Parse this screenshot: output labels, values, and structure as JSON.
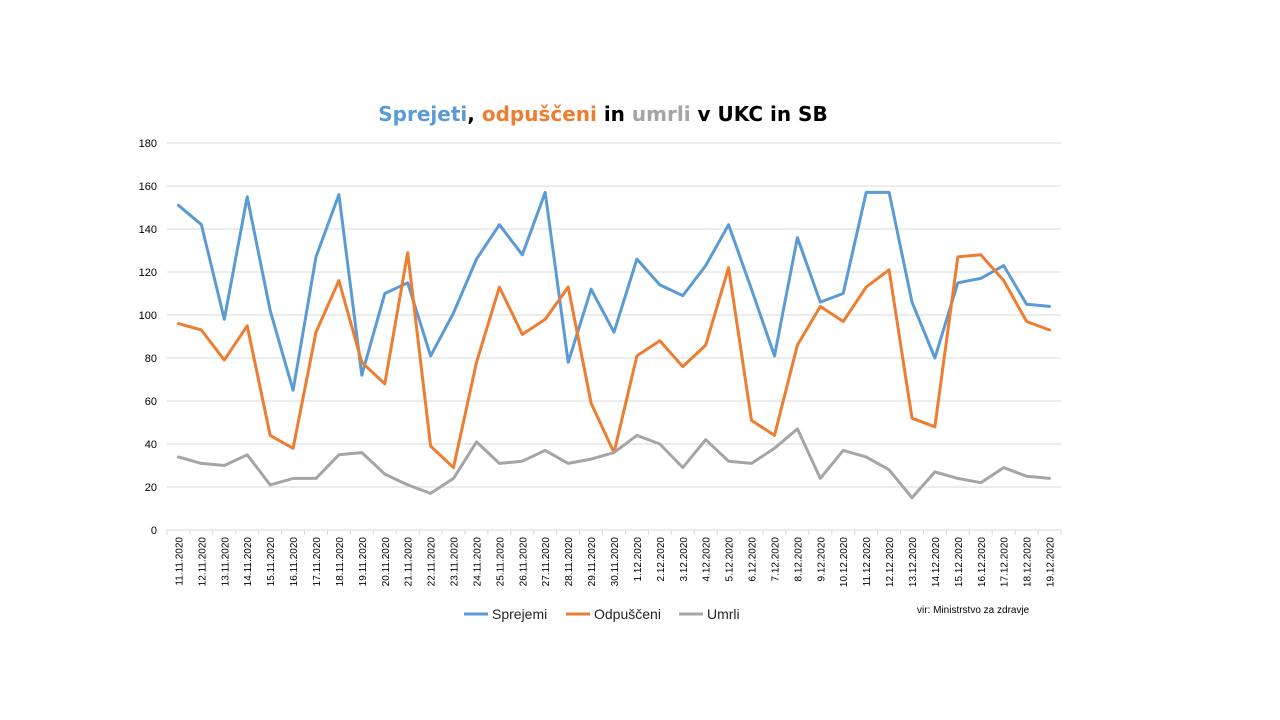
{
  "chart_data": {
    "type": "line",
    "title_parts": [
      {
        "text": "Sprejeti",
        "color": "#5b9bd5"
      },
      {
        "text": ", ",
        "color": "#000000"
      },
      {
        "text": "odpuščeni",
        "color": "#ed7d31"
      },
      {
        "text": " in ",
        "color": "#000000"
      },
      {
        "text": "umrli",
        "color": "#a5a5a5"
      },
      {
        "text": " v UKC in SB",
        "color": "#000000"
      }
    ],
    "source": "vir: Ministrstvo za zdravje",
    "ylim": [
      0,
      180
    ],
    "yticks": [
      0,
      20,
      40,
      60,
      80,
      100,
      120,
      140,
      160,
      180
    ],
    "grid": true,
    "legend_position": "bottom",
    "categories": [
      "11.11.2020",
      "12.11.2020",
      "13.11.2020",
      "14.11.2020",
      "15.11.2020",
      "16.11.2020",
      "17.11.2020",
      "18.11.2020",
      "19.11.2020",
      "20.11.2020",
      "21.11.2020",
      "22.11.2020",
      "23.11.2020",
      "24.11.2020",
      "25.11.2020",
      "26.11.2020",
      "27.11.2020",
      "28.11.2020",
      "29.11.2020",
      "30.11.2020",
      "1.12.2020",
      "2.12.2020",
      "3.12.2020",
      "4.12.2020",
      "5.12.2020",
      "6.12.2020",
      "7.12.2020",
      "8.12.2020",
      "9.12.2020",
      "10.12.2020",
      "11.12.2020",
      "12.12.2020",
      "13.12.2020",
      "14.12.2020",
      "15.12.2020",
      "16.12.2020",
      "17.12.2020",
      "18.12.2020",
      "19.12.2020"
    ],
    "series": [
      {
        "name": "Sprejemi",
        "color": "#5b9bd5",
        "values": [
          151,
          142,
          98,
          155,
          102,
          65,
          127,
          156,
          72,
          110,
          115,
          81,
          101,
          126,
          142,
          128,
          157,
          78,
          112,
          92,
          126,
          114,
          109,
          123,
          142,
          112,
          81,
          136,
          106,
          110,
          157,
          157,
          106,
          80,
          115,
          117,
          123,
          105,
          104
        ]
      },
      {
        "name": "Odpuščeni",
        "color": "#ed7d31",
        "values": [
          96,
          93,
          79,
          95,
          44,
          38,
          92,
          116,
          78,
          68,
          129,
          39,
          29,
          78,
          113,
          91,
          98,
          113,
          59,
          36,
          81,
          88,
          76,
          86,
          122,
          51,
          44,
          86,
          104,
          97,
          113,
          121,
          52,
          48,
          127,
          128,
          116,
          97,
          93
        ]
      },
      {
        "name": "Umrli",
        "color": "#a5a5a5",
        "values": [
          34,
          31,
          30,
          35,
          21,
          24,
          24,
          35,
          36,
          26,
          21,
          17,
          24,
          41,
          31,
          32,
          37,
          31,
          33,
          36,
          44,
          40,
          29,
          42,
          32,
          31,
          38,
          47,
          24,
          37,
          34,
          28,
          15,
          27,
          24,
          22,
          29,
          25,
          24
        ]
      }
    ]
  }
}
